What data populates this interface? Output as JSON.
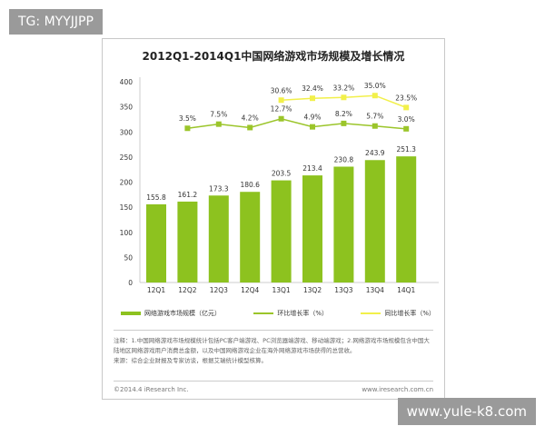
{
  "watermarks": {
    "top_left": "TG: MYYJJPP",
    "bottom_right": "www.yule-k8.com"
  },
  "chart_data": {
    "type": "bar",
    "title": "2012Q1-2014Q1中国网络游戏市场规模及增长情况",
    "categories": [
      "12Q1",
      "12Q2",
      "12Q3",
      "12Q4",
      "13Q1",
      "13Q2",
      "13Q3",
      "13Q4",
      "14Q1"
    ],
    "ylim": [
      0,
      400
    ],
    "yticks": [
      0,
      50,
      100,
      150,
      200,
      250,
      300,
      350,
      400
    ],
    "grid": false,
    "legend_placement": "bottom",
    "series": [
      {
        "name": "网络游戏市场规模（亿元）",
        "type": "bar",
        "color": "#8dc21f",
        "values": [
          155.8,
          161.2,
          173.3,
          180.6,
          203.5,
          213.4,
          230.8,
          243.9,
          251.3
        ]
      },
      {
        "name": "环比增长率（%）",
        "type": "line",
        "color": "#9bc52a",
        "values": [
          null,
          3.5,
          7.5,
          4.2,
          12.7,
          4.9,
          8.2,
          5.7,
          3.0
        ]
      },
      {
        "name": "同比增长率（%）",
        "type": "line",
        "color": "#f2f04a",
        "values": [
          null,
          null,
          null,
          null,
          30.6,
          32.4,
          33.2,
          35.0,
          23.5
        ]
      }
    ]
  },
  "notes": [
    "注释：1.中国网络游戏市场规模统计包括PC客户端游戏、PC浏览器端游戏、移动端游戏；2.网络游戏市场规模包含中国大陆地区网络游戏用户消费总金额，以及中国网络游戏企业在海外网络游戏市场获得的总营收。",
    "来源：综合企业财报及专家访谈，根据艾瑞统计模型核算。"
  ],
  "footer": {
    "left": "©2014.4 iResearch Inc.",
    "right": "www.iresearch.com.cn"
  }
}
